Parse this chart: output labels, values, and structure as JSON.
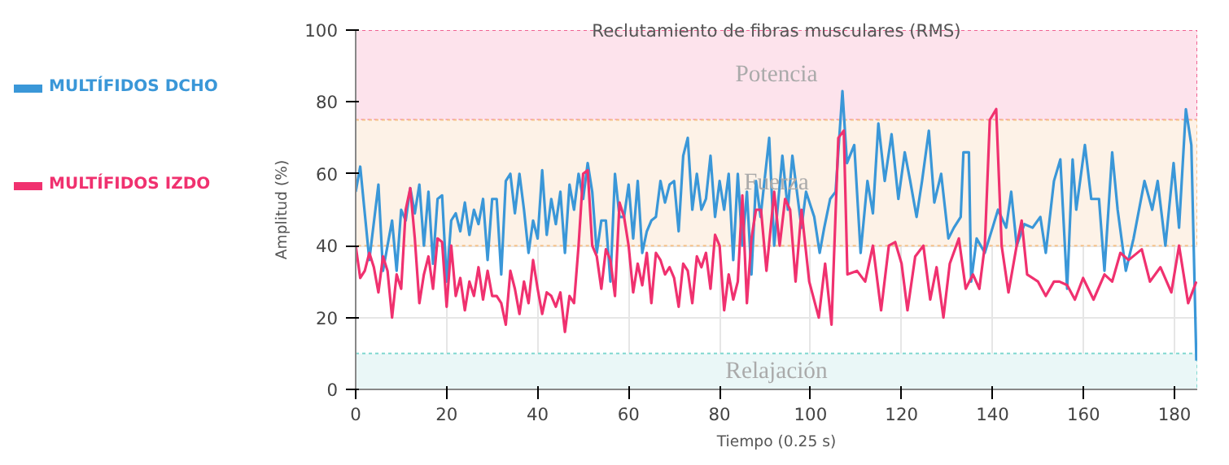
{
  "chart_data": {
    "type": "line",
    "title": "Reclutamiento de fibras musculares (RMS)",
    "xlabel": "Tiempo (0.25 s)",
    "ylabel": "Amplitud (%)",
    "xlim": [
      0,
      185
    ],
    "xticks": [
      0,
      20,
      40,
      60,
      80,
      100,
      120,
      140,
      160,
      180
    ],
    "ylim": [
      0,
      100
    ],
    "yticks": [
      0,
      20,
      40,
      60,
      80,
      100
    ],
    "grid": true,
    "legend": "left",
    "marker": "none",
    "line_style": "solid",
    "bands": [
      {
        "axis": "y",
        "from": 75,
        "to": 100,
        "label": "Potencia",
        "color": "#fde3ec"
      },
      {
        "axis": "y",
        "from": 40,
        "to": 75,
        "label": "Fuerza",
        "color": "#fdf2e7"
      },
      {
        "axis": "y",
        "from": 0,
        "to": 10,
        "label": "Relajación",
        "color": "#eaf7f7"
      }
    ],
    "series": [
      {
        "name": "MULTÍFIDOS DCHO",
        "color": "#3a97d8",
        "x": [
          0,
          1,
          3,
          5,
          6,
          8,
          9,
          10,
          11,
          12,
          13,
          14,
          15,
          16,
          17,
          18,
          19,
          20,
          21,
          22,
          23,
          24,
          25,
          26,
          27,
          28,
          29,
          30,
          31,
          32,
          33,
          34,
          35,
          36,
          37,
          38,
          39,
          40,
          41,
          42,
          43,
          44,
          45,
          46,
          47,
          48,
          49,
          50,
          51,
          52,
          53,
          54,
          55,
          56,
          57,
          58,
          59,
          60,
          61,
          62,
          63,
          64,
          65,
          66,
          67,
          68,
          69,
          70,
          71,
          72,
          73,
          74,
          75,
          76,
          77,
          78,
          79,
          80,
          81,
          82,
          83,
          84,
          85,
          86,
          87,
          88,
          89,
          90.9,
          92,
          93.8,
          95,
          96,
          98,
          99,
          100.8,
          102,
          103,
          104.3,
          105.5,
          107,
          108,
          109.6,
          111,
          112.5,
          113.7,
          114.9,
          116.3,
          117.8,
          119.3,
          120.7,
          121.9,
          123.3,
          124.5,
          126,
          127.2,
          128.7,
          130.3,
          131.5,
          133,
          133.6,
          134.8,
          135.3,
          136.5,
          138.3,
          140,
          141.2,
          143,
          144.1,
          145.3,
          147,
          148.8,
          150.5,
          151.7,
          153.5,
          154.9,
          156.4,
          157.6,
          158.4,
          160.3,
          161.7,
          163.4,
          164.6,
          166.3,
          167.5,
          169.3,
          171,
          173.4,
          175.1,
          176.3,
          178,
          179.8,
          181,
          182.5,
          183.7,
          184.8
        ],
        "values": [
          55,
          62,
          36,
          57,
          33,
          47,
          33,
          50,
          47,
          56,
          49,
          57,
          40,
          55,
          35,
          53,
          54,
          30,
          47,
          49,
          44,
          52,
          43,
          50,
          46,
          53,
          36,
          53,
          53,
          32,
          58,
          60,
          49,
          60,
          50,
          38,
          47,
          42,
          61,
          43,
          53,
          46,
          55,
          38,
          57,
          50,
          60,
          53,
          63,
          55,
          38,
          47,
          47,
          30,
          60,
          48,
          48,
          57,
          42,
          58,
          38,
          44,
          47,
          48,
          58,
          52,
          57,
          58,
          44,
          65,
          70,
          50,
          60,
          50,
          53,
          65,
          48,
          58,
          50,
          60,
          36,
          60,
          40,
          55,
          32,
          58,
          48,
          70,
          40,
          65,
          50,
          65,
          45,
          55,
          48,
          38,
          45,
          53,
          55,
          83,
          63,
          68,
          38,
          58,
          49,
          74,
          58,
          71,
          53,
          66,
          58,
          48,
          58,
          72,
          52,
          60,
          42,
          45,
          48,
          66,
          66,
          30,
          42,
          38,
          45,
          50,
          45,
          55,
          40,
          46,
          45,
          48,
          38,
          58,
          64,
          28,
          64,
          50,
          68,
          53,
          53,
          33,
          66,
          50,
          33,
          42,
          58,
          50,
          58,
          40,
          63,
          45,
          78,
          68,
          8
        ]
      },
      {
        "name": "MULTÍFIDOS IZDO",
        "color": "#f0316f",
        "x": [
          0,
          1,
          2,
          3,
          4,
          5,
          6,
          7,
          8,
          9,
          10,
          11,
          12,
          13,
          14,
          15,
          16,
          17,
          18,
          19,
          20,
          21,
          22,
          23,
          24,
          25,
          26,
          27,
          28,
          29,
          30,
          31,
          32,
          33,
          34,
          35,
          36,
          37,
          38,
          39,
          40,
          41,
          42,
          43,
          44,
          45,
          46,
          47,
          48,
          49,
          50,
          51,
          52,
          53,
          54,
          55,
          56,
          57,
          58,
          59,
          60,
          61,
          62,
          63,
          64,
          65,
          66,
          67,
          68,
          69,
          70,
          71,
          72,
          73,
          74,
          75,
          76,
          77,
          78,
          79,
          80,
          81,
          82,
          83,
          84,
          85,
          86,
          87,
          88,
          89.1,
          90.3,
          92,
          93.2,
          94.4,
          95.5,
          96.7,
          98,
          99.7,
          101.8,
          103.2,
          104.6,
          106.1,
          107.3,
          108.1,
          110.2,
          112,
          113.7,
          115.5,
          117.2,
          118.6,
          120,
          121.3,
          123,
          124.8,
          126.3,
          127.7,
          129.2,
          130.6,
          132.6,
          134.1,
          135.7,
          137.1,
          138.3,
          139.4,
          140.8,
          142,
          143.5,
          145.3,
          146.4,
          147.6,
          150,
          151.7,
          153.5,
          154.7,
          156.4,
          158.1,
          159.9,
          162.2,
          164.6,
          166.3,
          168.1,
          169.9,
          172.8,
          174.6,
          176.9,
          179.3,
          181,
          183,
          184.8
        ],
        "values": [
          40,
          31,
          33,
          38,
          34,
          27,
          37,
          33,
          20,
          32,
          28,
          50,
          56,
          42,
          24,
          32,
          37,
          28,
          42,
          41,
          23,
          40,
          26,
          31,
          22,
          30,
          26,
          34,
          25,
          33,
          26,
          26,
          24,
          18,
          33,
          28,
          21,
          30,
          24,
          36,
          28,
          21,
          27,
          26,
          23,
          27,
          16,
          26,
          24,
          40,
          60,
          61,
          40,
          37,
          28,
          39,
          36,
          26,
          52,
          48,
          40,
          27,
          35,
          29,
          38,
          24,
          38,
          36,
          32,
          34,
          31,
          23,
          35,
          33,
          24,
          37,
          34,
          38,
          28,
          43,
          40,
          22,
          32,
          25,
          30,
          54,
          24,
          42,
          50,
          50,
          33,
          55,
          40,
          53,
          50,
          30,
          50,
          30,
          20,
          35,
          18,
          70,
          72,
          32,
          33,
          30,
          40,
          22,
          40,
          41,
          35,
          22,
          37,
          40,
          25,
          34,
          20,
          35,
          42,
          28,
          32,
          28,
          40,
          75,
          78,
          40,
          27,
          40,
          47,
          32,
          30,
          26,
          30,
          30,
          29,
          25,
          31,
          25,
          32,
          30,
          38,
          36,
          39,
          30,
          34,
          27,
          40,
          24,
          30
        ]
      }
    ]
  }
}
